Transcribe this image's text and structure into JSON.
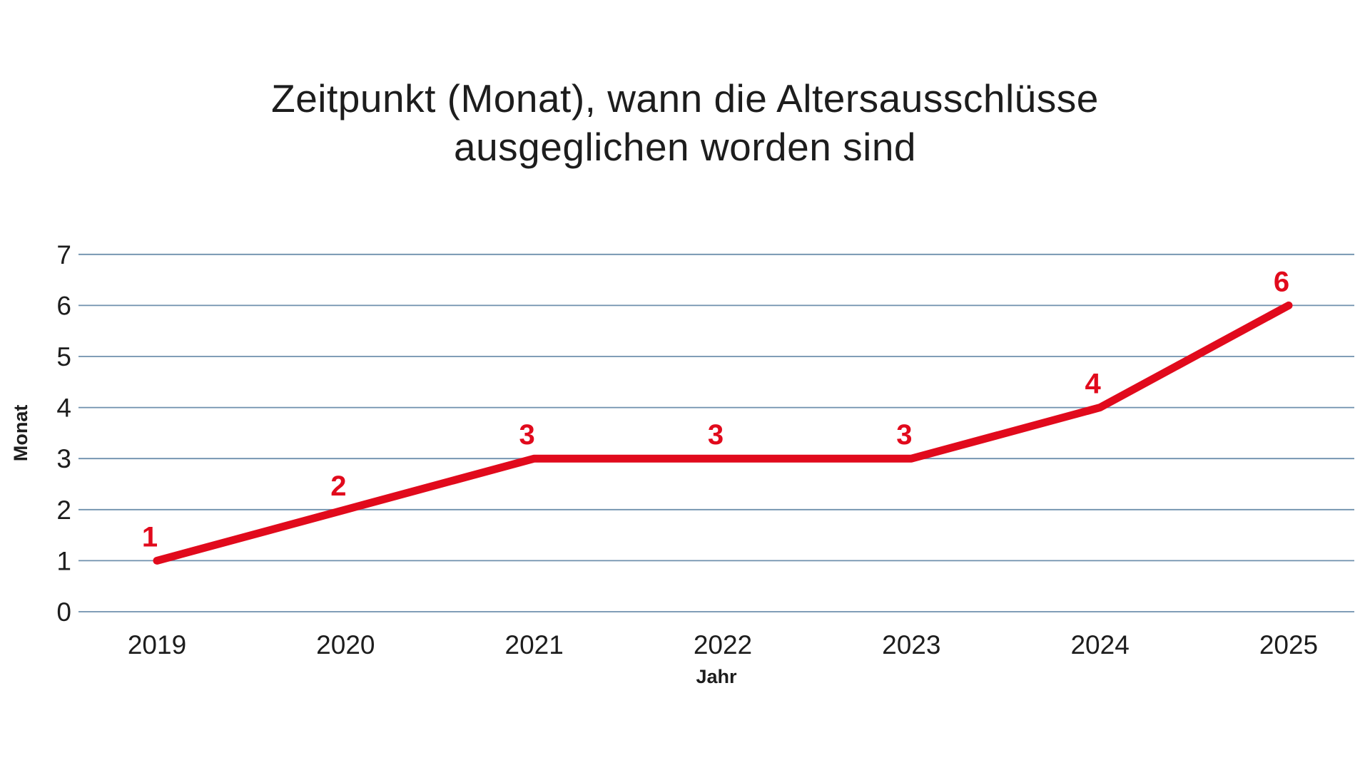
{
  "page": {
    "background": "#ffffff"
  },
  "chart_data": {
    "type": "line",
    "title": "Zeitpunkt (Monat), wann die Altersausschlüsse ausgeglichen worden sind",
    "title_lines": [
      "Zeitpunkt (Monat), wann die Altersausschlüsse",
      "ausgeglichen worden sind"
    ],
    "xlabel": "Jahr",
    "ylabel": "Monat",
    "categories": [
      "2019",
      "2020",
      "2021",
      "2022",
      "2023",
      "2024",
      "2025"
    ],
    "series": [
      {
        "name": "Monat",
        "values": [
          1,
          2,
          3,
          3,
          3,
          4,
          6
        ]
      }
    ],
    "ylim": [
      0,
      7
    ],
    "yticks": [
      0,
      1,
      2,
      3,
      4,
      5,
      6,
      7
    ],
    "grid": "horizontal",
    "legend": "none",
    "colors": {
      "line": "#e10a1c",
      "data_label": "#e10a1c",
      "gridline": "#6f90ad",
      "text": "#1d1d1d"
    }
  }
}
